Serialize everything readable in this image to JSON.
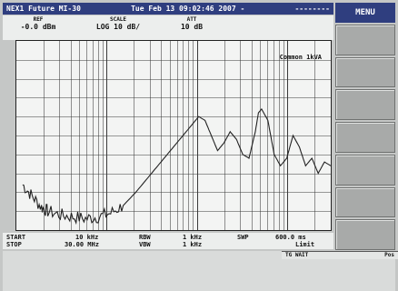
{
  "titlebar": {
    "model": "NEX1 Future MI-30",
    "datetime": "Tue Feb 13 09:02:46 2007 -",
    "mask": "--------"
  },
  "sidebar": {
    "title": "MENU"
  },
  "header": {
    "ref": {
      "label": "REF",
      "value": "-0.0 dBm"
    },
    "scale": {
      "label": "SCALE",
      "value": "LOG 10 dB/"
    },
    "att": {
      "label": "ATT",
      "value": "10 dB"
    }
  },
  "plot": {
    "trace_label": "Common 1kVA",
    "colors": {
      "background": "#f3f4f3",
      "grid": "#3a3a3a",
      "trace": "#222222"
    }
  },
  "footer": {
    "start_label": "START",
    "start_value": "10 kHz",
    "stop_label": "STOP",
    "stop_value": "30.00 MHz",
    "rbw_label": "RBW",
    "rbw_value": "1 kHz",
    "vbw_label": "VBW",
    "vbw_value": "1 kHz",
    "swp_label": "SWP",
    "swp_value": "600.0 ms",
    "limit_value": "Limit"
  },
  "status": {
    "left": "TG WAIT",
    "right": "Pos"
  },
  "chart_data": {
    "type": "line",
    "xscale": "log",
    "xlim": [
      "10 kHz",
      "30.00 MHz"
    ],
    "trace_shape": [
      [
        0.02,
        0.24
      ],
      [
        0.05,
        0.18
      ],
      [
        0.08,
        0.12
      ],
      [
        0.1,
        0.1
      ],
      [
        0.14,
        0.08
      ],
      [
        0.18,
        0.07
      ],
      [
        0.22,
        0.06
      ],
      [
        0.26,
        0.07
      ],
      [
        0.3,
        0.09
      ],
      [
        0.34,
        0.13
      ],
      [
        0.38,
        0.2
      ],
      [
        0.42,
        0.28
      ],
      [
        0.46,
        0.36
      ],
      [
        0.5,
        0.44
      ],
      [
        0.53,
        0.5
      ],
      [
        0.56,
        0.56
      ],
      [
        0.58,
        0.6
      ],
      [
        0.6,
        0.58
      ],
      [
        0.62,
        0.5
      ],
      [
        0.64,
        0.42
      ],
      [
        0.66,
        0.46
      ],
      [
        0.68,
        0.52
      ],
      [
        0.7,
        0.48
      ],
      [
        0.72,
        0.4
      ],
      [
        0.74,
        0.38
      ],
      [
        0.76,
        0.52
      ],
      [
        0.77,
        0.62
      ],
      [
        0.78,
        0.64
      ],
      [
        0.8,
        0.58
      ],
      [
        0.82,
        0.4
      ],
      [
        0.84,
        0.34
      ],
      [
        0.86,
        0.38
      ],
      [
        0.88,
        0.5
      ],
      [
        0.9,
        0.44
      ],
      [
        0.92,
        0.34
      ],
      [
        0.94,
        0.38
      ],
      [
        0.96,
        0.3
      ],
      [
        0.98,
        0.36
      ],
      [
        1.0,
        0.34
      ]
    ]
  }
}
